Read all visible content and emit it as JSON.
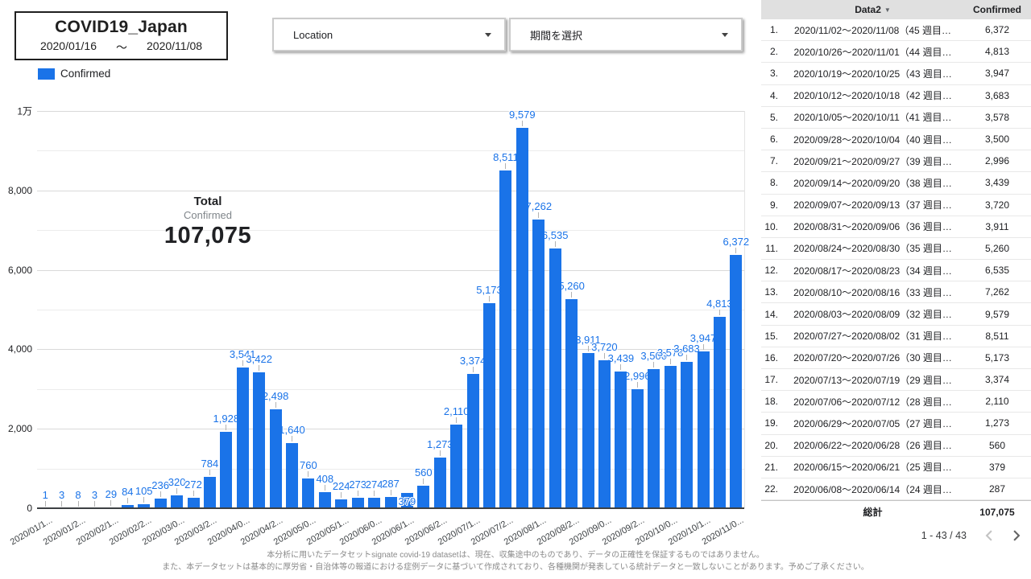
{
  "header": {
    "title": "COVID19_Japan",
    "date_start": "2020/01/16",
    "tilde": "～",
    "date_end": "2020/11/08"
  },
  "filters": {
    "location": {
      "label": "Location"
    },
    "period": {
      "label": "期間を選択"
    }
  },
  "legend": {
    "label": "Confirmed",
    "color": "#1a73e8"
  },
  "scorecard": {
    "title": "Total",
    "metric": "Confirmed",
    "value": "107,075"
  },
  "icons": {
    "dropdown_caret": "▾",
    "sort_caret": "▼",
    "prev": "chevron-left",
    "next": "chevron-right"
  },
  "chart_data": {
    "type": "bar",
    "title": "",
    "xlabel": "",
    "ylabel": "",
    "ylim": [
      0,
      10000
    ],
    "grid": "horizontal, minor every 1000, major labeled every 2000",
    "legend_position": "top-left",
    "bar_color": "#1a73e8",
    "label_color": "#1a73e8",
    "y_major_tick_values": [
      0,
      2000,
      4000,
      6000,
      8000,
      10000
    ],
    "y_major_ticks": [
      "0",
      "2,000",
      "4,000",
      "6,000",
      "8,000",
      "1万"
    ],
    "x_tick_labels": [
      "2020/01/1...",
      "2020/01/2...",
      "2020/02/1...",
      "2020/02/2...",
      "2020/03/0...",
      "2020/03/2...",
      "2020/04/0...",
      "2020/04/2...",
      "2020/05/0...",
      "2020/05/1...",
      "2020/06/0...",
      "2020/06/1...",
      "2020/06/2...",
      "2020/07/1...",
      "2020/07/2...",
      "2020/08/1...",
      "2020/08/2...",
      "2020/09/0...",
      "2020/09/2...",
      "2020/10/0...",
      "2020/10/1...",
      "2020/11/0..."
    ],
    "values": [
      1,
      3,
      8,
      3,
      29,
      84,
      105,
      236,
      320,
      272,
      784,
      1928,
      3541,
      3422,
      2498,
      1640,
      760,
      408,
      224,
      273,
      274,
      287,
      379,
      560,
      1273,
      2110,
      3374,
      5173,
      8511,
      9579,
      7262,
      6535,
      5260,
      3911,
      3720,
      3439,
      2996,
      3500,
      3578,
      3683,
      3947,
      4813,
      6372
    ],
    "value_labels": [
      "1",
      "3",
      "8",
      "3",
      "29",
      "84",
      "105",
      "236",
      "320",
      "272",
      "784",
      "1,928",
      "3,541",
      "3,422",
      "2,498",
      "1,640",
      "760",
      "408",
      "224",
      "273",
      "274",
      "287",
      "379",
      "560",
      "1,273",
      "2,110",
      "3,374",
      "5,173",
      "8,511",
      "9,579",
      "7,262",
      "6,535",
      "5,260",
      "3,911",
      "3,720",
      "3,439",
      "2,996",
      "3,500",
      "3,578",
      "3,683",
      "3,947",
      "4,813",
      "6,372"
    ],
    "inside_label_index": 22
  },
  "table": {
    "headers": {
      "data2": "Data2",
      "sort_icon": "▼",
      "confirmed": "Confirmed"
    },
    "rows": [
      {
        "rank": "1.",
        "period": "2020/11/02～2020/11/08（45 週目…",
        "confirmed": "6,372"
      },
      {
        "rank": "2.",
        "period": "2020/10/26～2020/11/01（44 週目…",
        "confirmed": "4,813"
      },
      {
        "rank": "3.",
        "period": "2020/10/19～2020/10/25（43 週目…",
        "confirmed": "3,947"
      },
      {
        "rank": "4.",
        "period": "2020/10/12～2020/10/18（42 週目…",
        "confirmed": "3,683"
      },
      {
        "rank": "5.",
        "period": "2020/10/05～2020/10/11（41 週目…",
        "confirmed": "3,578"
      },
      {
        "rank": "6.",
        "period": "2020/09/28～2020/10/04（40 週目…",
        "confirmed": "3,500"
      },
      {
        "rank": "7.",
        "period": "2020/09/21～2020/09/27（39 週目…",
        "confirmed": "2,996"
      },
      {
        "rank": "8.",
        "period": "2020/09/14～2020/09/20（38 週目…",
        "confirmed": "3,439"
      },
      {
        "rank": "9.",
        "period": "2020/09/07～2020/09/13（37 週目…",
        "confirmed": "3,720"
      },
      {
        "rank": "10.",
        "period": "2020/08/31～2020/09/06（36 週目…",
        "confirmed": "3,911"
      },
      {
        "rank": "11.",
        "period": "2020/08/24～2020/08/30（35 週目…",
        "confirmed": "5,260"
      },
      {
        "rank": "12.",
        "period": "2020/08/17～2020/08/23（34 週目…",
        "confirmed": "6,535"
      },
      {
        "rank": "13.",
        "period": "2020/08/10～2020/08/16（33 週目…",
        "confirmed": "7,262"
      },
      {
        "rank": "14.",
        "period": "2020/08/03～2020/08/09（32 週目…",
        "confirmed": "9,579"
      },
      {
        "rank": "15.",
        "period": "2020/07/27～2020/08/02（31 週目…",
        "confirmed": "8,511"
      },
      {
        "rank": "16.",
        "period": "2020/07/20～2020/07/26（30 週目…",
        "confirmed": "5,173"
      },
      {
        "rank": "17.",
        "period": "2020/07/13～2020/07/19（29 週目…",
        "confirmed": "3,374"
      },
      {
        "rank": "18.",
        "period": "2020/07/06～2020/07/12（28 週目…",
        "confirmed": "2,110"
      },
      {
        "rank": "19.",
        "period": "2020/06/29～2020/07/05（27 週目…",
        "confirmed": "1,273"
      },
      {
        "rank": "20.",
        "period": "2020/06/22～2020/06/28（26 週目…",
        "confirmed": "560"
      },
      {
        "rank": "21.",
        "period": "2020/06/15～2020/06/21（25 週目…",
        "confirmed": "379"
      },
      {
        "rank": "22.",
        "period": "2020/06/08～2020/06/14（24 週目…",
        "confirmed": "287"
      }
    ],
    "total": {
      "label": "総計",
      "value": "107,075"
    },
    "pagination": {
      "range": "1 - 43 / 43"
    }
  },
  "footer": {
    "line1": "本分析に用いたデータセットsignate covid-19 datasetは、現在、収集途中のものであり、データの正確性を保証するものではありません。",
    "line2": "また、本データセットは基本的に厚労省・自治体等の報道における症例データに基づいて作成されており、各種機関が発表している統計データと一致しないことがあります。予めご了承ください。"
  }
}
